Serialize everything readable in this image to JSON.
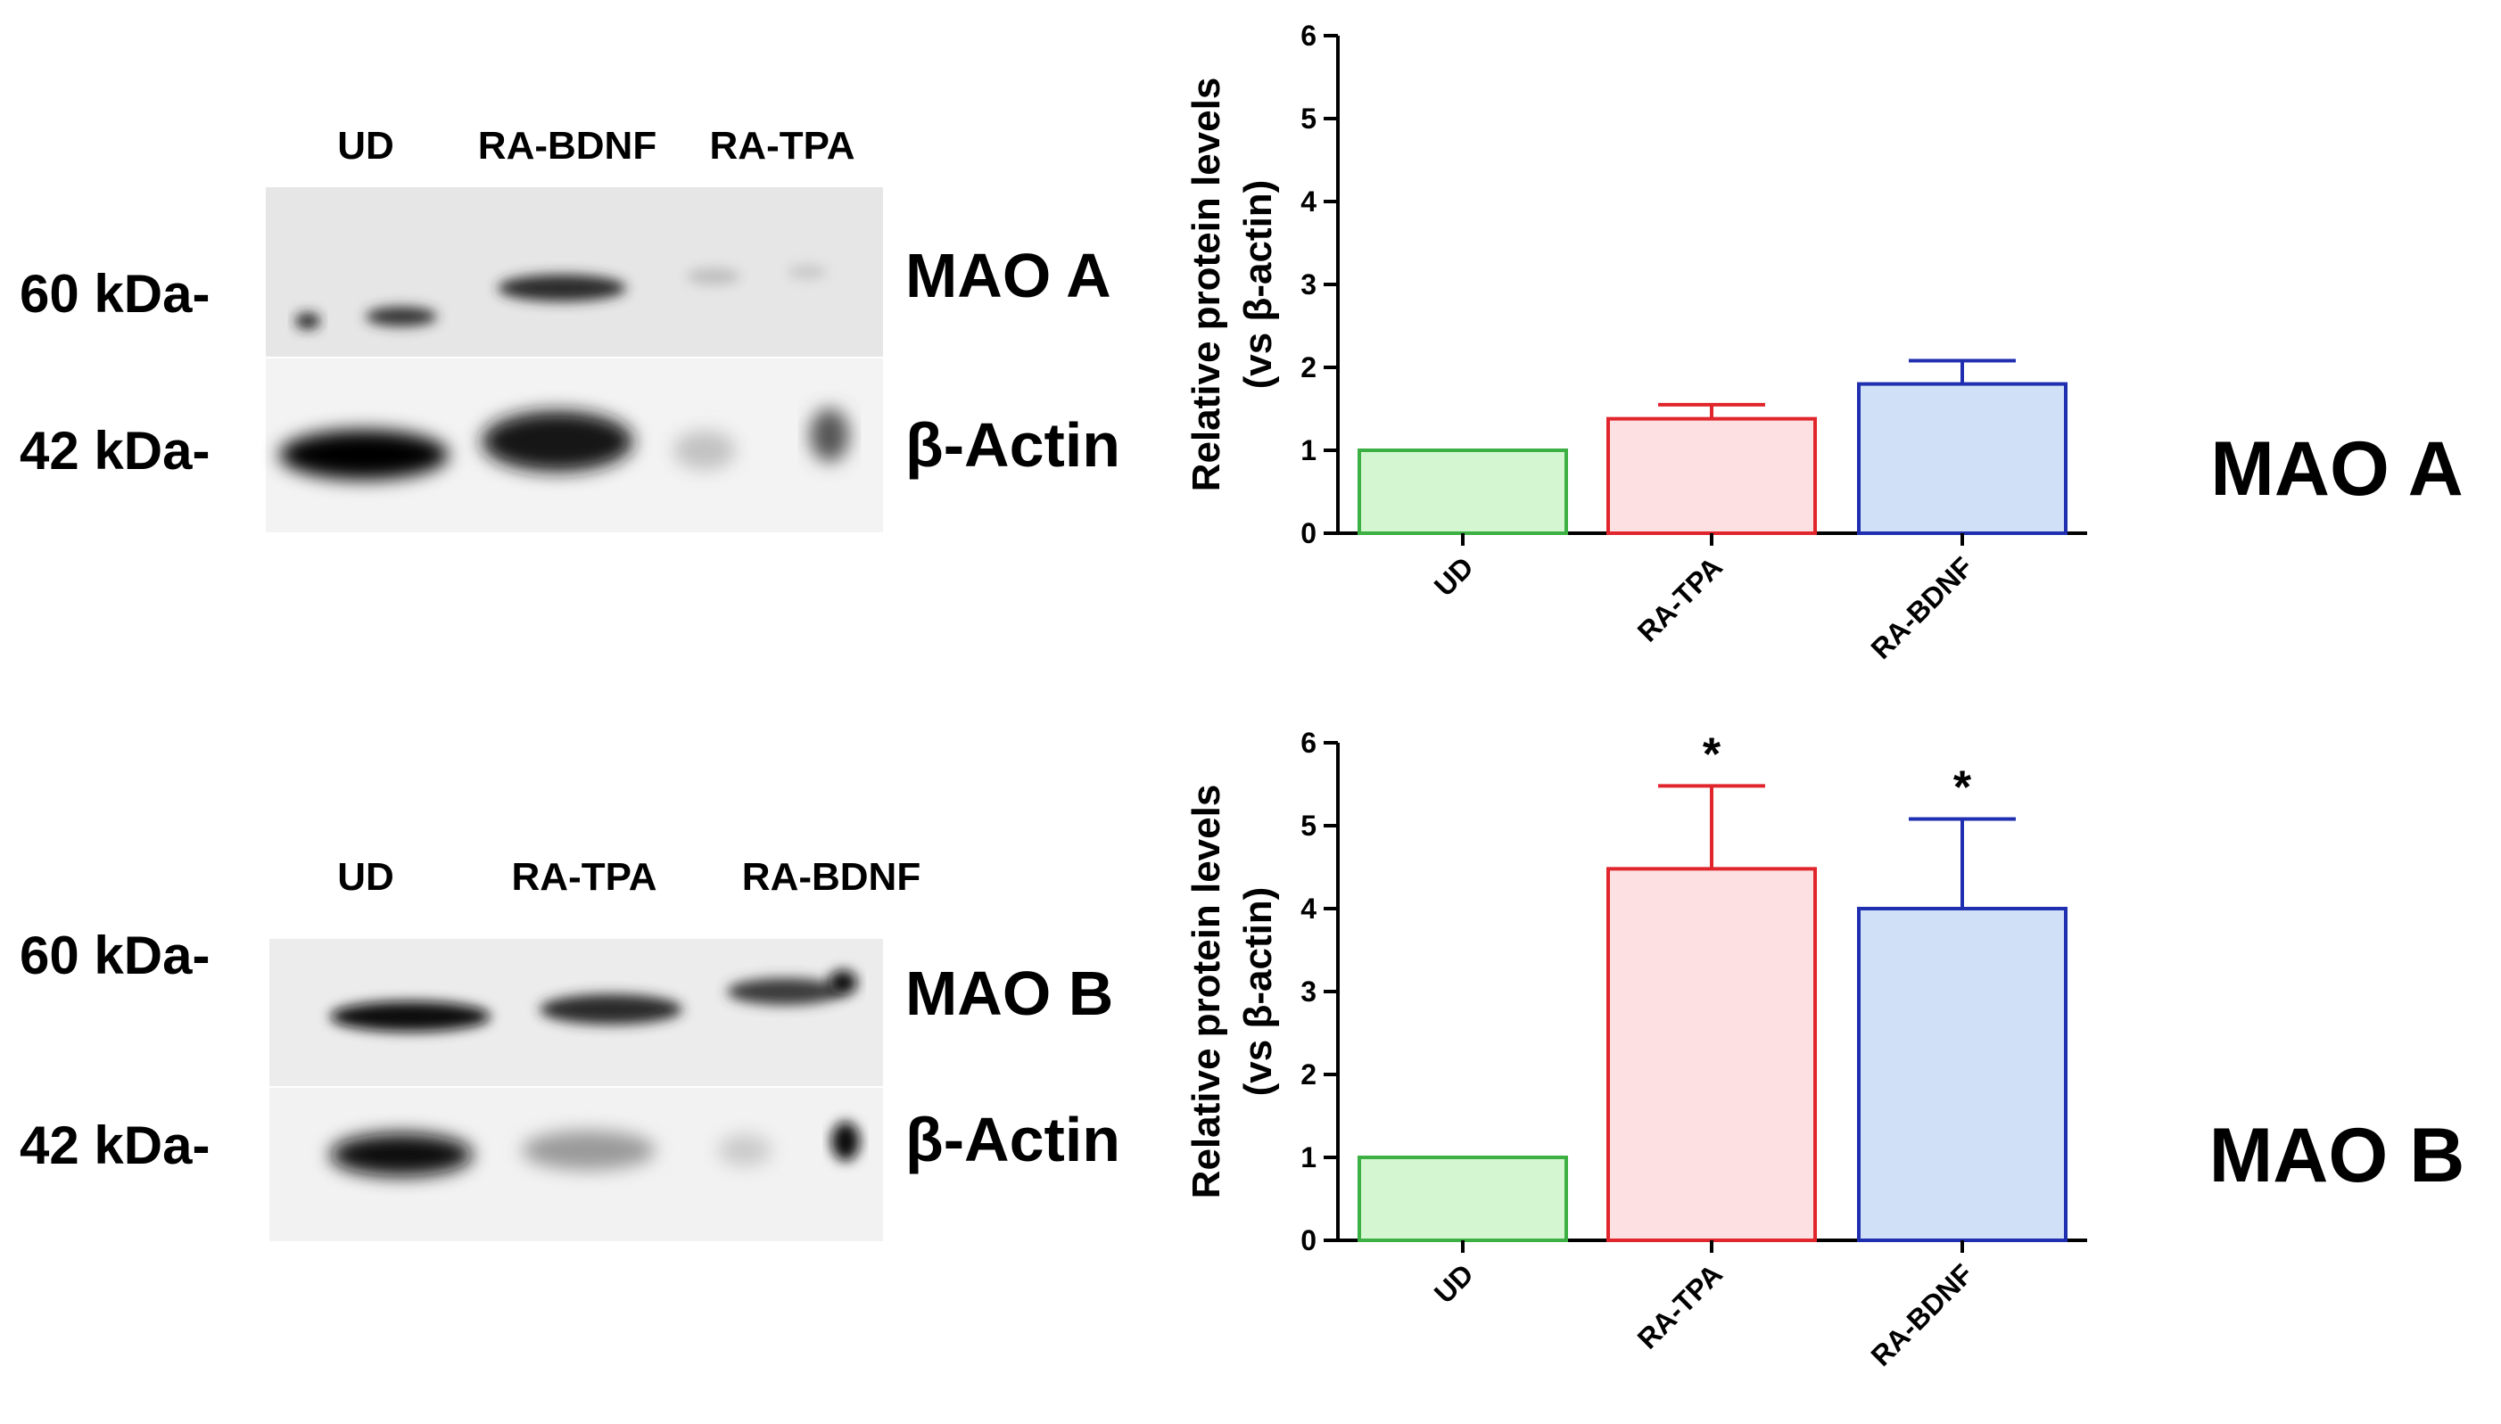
{
  "blots": [
    {
      "lanes": [
        "UD",
        "RA-BDNF",
        "RA-TPA"
      ],
      "markers": [
        "60 kDa-",
        "42 kDa-"
      ],
      "proteins": [
        "MAO A",
        "β-Actin"
      ]
    },
    {
      "lanes": [
        "UD",
        "RA-TPA",
        "RA-BDNF"
      ],
      "markers": [
        "60 kDa-",
        "42 kDa-"
      ],
      "proteins": [
        "MAO B",
        "β-Actin"
      ]
    }
  ],
  "chart_data": [
    {
      "type": "bar",
      "title": "MAO A",
      "categories": [
        "UD",
        "RA-TPA",
        "RA-BDNF"
      ],
      "values": [
        1.0,
        1.38,
        1.8
      ],
      "errors": [
        0,
        0.17,
        0.28
      ],
      "significance": [
        "",
        "",
        ""
      ],
      "ylabel_line1": "Relative protein levels",
      "ylabel_line2": "(vs β-actin)",
      "ylim": [
        0,
        6
      ],
      "yticks": [
        0,
        1,
        2,
        3,
        4,
        5,
        6
      ],
      "colors": {
        "fill": [
          "#d4f7d2",
          "#fde0e1",
          "#cfe0f7"
        ],
        "stroke": [
          "#3cb043",
          "#e0262c",
          "#1f2fb0"
        ]
      }
    },
    {
      "type": "bar",
      "title": "MAO B",
      "categories": [
        "UD",
        "RA-TPA",
        "RA-BDNF"
      ],
      "values": [
        1.0,
        4.48,
        4.0
      ],
      "errors": [
        0,
        1.0,
        1.08
      ],
      "significance": [
        "",
        "*",
        "*"
      ],
      "ylabel_line1": "Relative protein levels",
      "ylabel_line2": "(vs β-actin)",
      "ylim": [
        0,
        6
      ],
      "yticks": [
        0,
        1,
        2,
        3,
        4,
        5,
        6
      ],
      "colors": {
        "fill": [
          "#d4f7d2",
          "#fde0e1",
          "#cfe0f7"
        ],
        "stroke": [
          "#3cb043",
          "#e0262c",
          "#1f2fb0"
        ]
      }
    }
  ]
}
